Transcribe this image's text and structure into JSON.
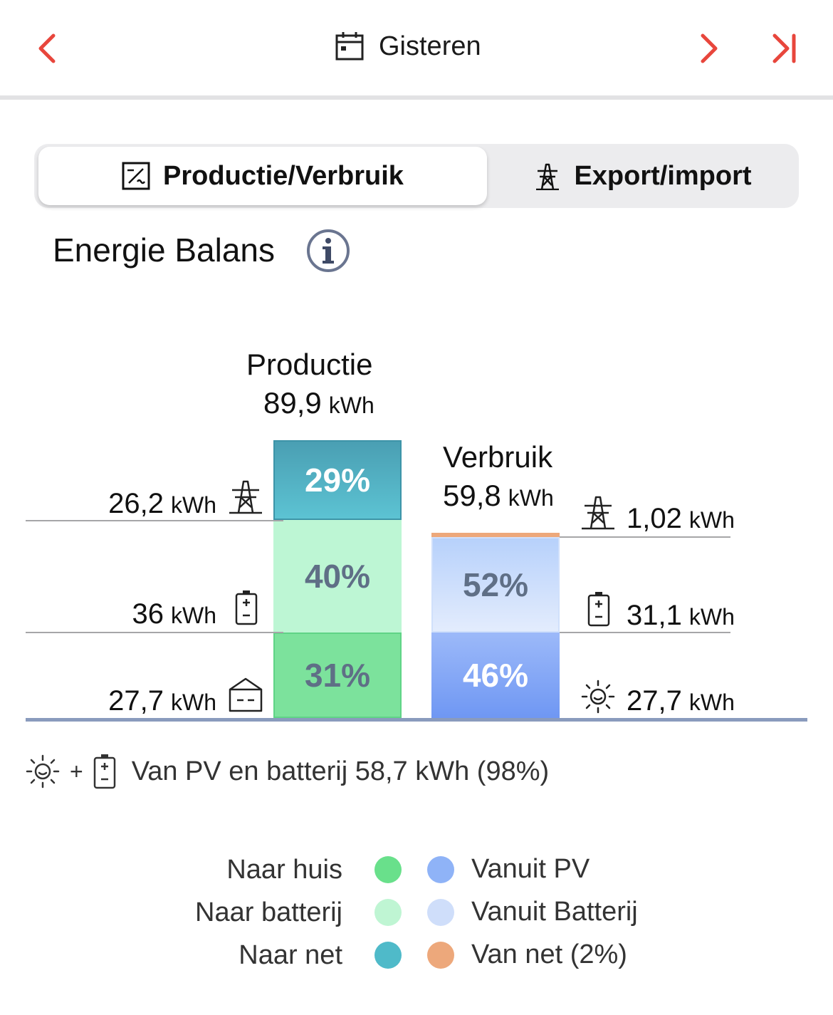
{
  "header": {
    "date_label": "Gisteren"
  },
  "tabs": [
    {
      "label": "Productie/Verbruik",
      "active": true
    },
    {
      "label": "Export/import",
      "active": false
    }
  ],
  "section_title": "Energie Balans",
  "production": {
    "title": "Productie",
    "total_value": "89,9",
    "unit": "kWh",
    "segments": [
      {
        "name": "Naar net",
        "percent_label": "29%",
        "kwh_value": "26,2",
        "icon": "power-pylon-icon"
      },
      {
        "name": "Naar batterij",
        "percent_label": "40%",
        "kwh_value": "36",
        "icon": "battery-icon"
      },
      {
        "name": "Naar huis",
        "percent_label": "31%",
        "kwh_value": "27,7",
        "icon": "house-icon"
      }
    ]
  },
  "consumption": {
    "title": "Verbruik",
    "total_value": "59,8",
    "unit": "kWh",
    "segments": [
      {
        "name": "Van net",
        "percent_label": "",
        "kwh_value": "1,02",
        "icon": "power-pylon-icon"
      },
      {
        "name": "Vanuit Batterij",
        "percent_label": "52%",
        "kwh_value": "31,1",
        "icon": "battery-icon"
      },
      {
        "name": "Vanuit PV",
        "percent_label": "46%",
        "kwh_value": "27,7",
        "icon": "sun-icon"
      }
    ]
  },
  "summary": {
    "plus": "+",
    "text": "Van PV en batterij 58,7 kWh (98%)"
  },
  "legend": {
    "left": [
      {
        "label": "Naar huis",
        "color": "#69e08b"
      },
      {
        "label": "Naar batterij",
        "color": "#bff5d3"
      },
      {
        "label": "Naar net",
        "color": "#4fbac9"
      }
    ],
    "right": [
      {
        "label": "Vanuit PV",
        "color": "#8fb3f7"
      },
      {
        "label": "Vanuit Batterij",
        "color": "#cfdefa"
      },
      {
        "label": "Van net (2%)",
        "color": "#eda87b"
      }
    ]
  },
  "colors": {
    "accent": "#e8463c",
    "naar_huis": "#7ce29c",
    "naar_batterij": "#bdf6d4",
    "naar_net": "#4fb1c4",
    "vanuit_pv": "#7ea6f8",
    "vanuit_batterij": "#c8dcfa",
    "van_net": "#eda87b"
  },
  "chart_data": {
    "type": "bar",
    "title": "",
    "categories": [
      "Productie",
      "Verbruik"
    ],
    "series": [
      {
        "name": "Naar net",
        "values": [
          26.2,
          null
        ]
      },
      {
        "name": "Naar batterij",
        "values": [
          36,
          null
        ]
      },
      {
        "name": "Naar huis",
        "values": [
          27.7,
          null
        ]
      },
      {
        "name": "Van net",
        "values": [
          null,
          1.02
        ]
      },
      {
        "name": "Vanuit Batterij",
        "values": [
          null,
          31.1
        ]
      },
      {
        "name": "Vanuit PV",
        "values": [
          null,
          27.7
        ]
      }
    ],
    "ylabel": "kWh",
    "stacked": true,
    "grid": false,
    "legend": "bottom"
  }
}
